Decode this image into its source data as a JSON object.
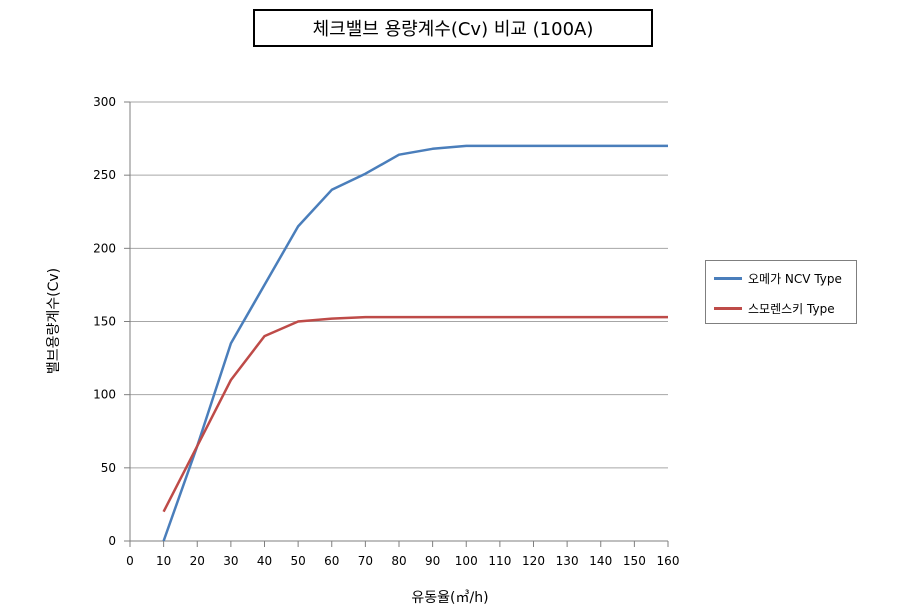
{
  "chart_data": {
    "type": "line",
    "title": "체크밸브 용량계수(Cv) 비교 (100A)",
    "xlabel": "유동율(㎥/h)",
    "ylabel": "밸브용량계수(Cv)",
    "xlim": [
      0,
      160
    ],
    "ylim": [
      0,
      300
    ],
    "x_ticks": [
      "0",
      "10",
      "20",
      "30",
      "40",
      "50",
      "60",
      "70",
      "80",
      "90",
      "100",
      "110",
      "120",
      "130",
      "140",
      "150",
      "160"
    ],
    "y_ticks": [
      "0",
      "50",
      "100",
      "150",
      "200",
      "250",
      "300"
    ],
    "grid": "horizontal",
    "legend_position": "right",
    "series": [
      {
        "name": "오메가 NCV Type",
        "color": "#4a7ebb",
        "x": [
          10,
          20,
          30,
          40,
          50,
          60,
          70,
          80,
          90,
          100,
          110,
          120,
          130,
          140,
          150,
          160
        ],
        "y": [
          0,
          65,
          135,
          175,
          215,
          240,
          251,
          264,
          268,
          270,
          270,
          270,
          270,
          270,
          270,
          270
        ]
      },
      {
        "name": "스모렌스키 Type",
        "color": "#be4b48",
        "x": [
          10,
          20,
          30,
          40,
          50,
          60,
          70,
          80,
          90,
          100,
          110,
          120,
          130,
          140,
          150,
          160
        ],
        "y": [
          20,
          65,
          110,
          140,
          150,
          152,
          153,
          153,
          153,
          153,
          153,
          153,
          153,
          153,
          153,
          153
        ]
      }
    ]
  }
}
